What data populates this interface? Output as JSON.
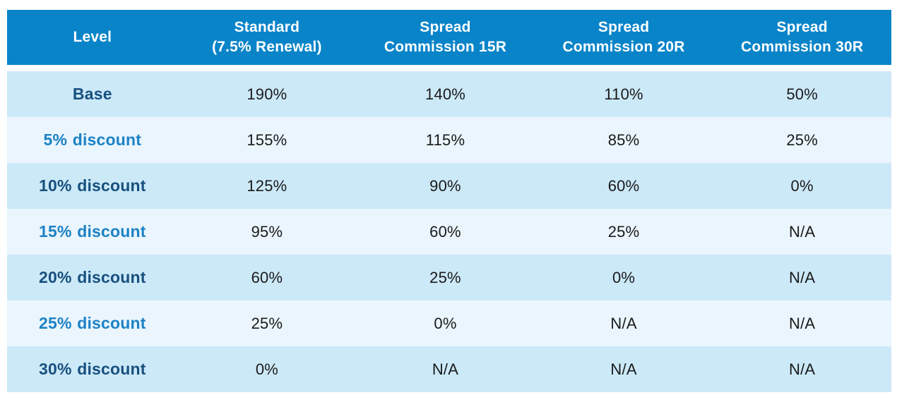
{
  "table": {
    "columns": [
      {
        "line1": "Level",
        "line2": ""
      },
      {
        "line1": "Standard",
        "line2": "(7.5% Renewal)"
      },
      {
        "line1": "Spread",
        "line2": "Commission 15R"
      },
      {
        "line1": "Spread",
        "line2": "Commission 20R"
      },
      {
        "line1": "Spread",
        "line2": "Commission 30R"
      }
    ],
    "rows": [
      {
        "label_strong": "Base",
        "label_rest": "",
        "label_style": "navy",
        "values": [
          "190%",
          "140%",
          "110%",
          "50%"
        ]
      },
      {
        "label_strong": "5%",
        "label_rest": "discount",
        "label_style": "blue",
        "values": [
          "155%",
          "115%",
          "85%",
          "25%"
        ]
      },
      {
        "label_strong": "10%",
        "label_rest": "discount",
        "label_style": "navy",
        "values": [
          "125%",
          "90%",
          "60%",
          "0%"
        ]
      },
      {
        "label_strong": "15%",
        "label_rest": "discount",
        "label_style": "blue",
        "values": [
          "95%",
          "60%",
          "25%",
          "N/A"
        ]
      },
      {
        "label_strong": "20%",
        "label_rest": "discount",
        "label_style": "navy",
        "values": [
          "60%",
          "25%",
          "0%",
          "N/A"
        ]
      },
      {
        "label_strong": "25%",
        "label_rest": "discount",
        "label_style": "blue",
        "values": [
          "25%",
          "0%",
          "N/A",
          "N/A"
        ]
      },
      {
        "label_strong": "30%",
        "label_rest": "discount",
        "label_style": "navy",
        "values": [
          "0%",
          "N/A",
          "N/A",
          "N/A"
        ]
      }
    ],
    "colors": {
      "header_bg": "#0984c9",
      "row_light_bg": "#cce9f8",
      "row_pale_bg": "#eaf5fd",
      "label_navy": "#17507e",
      "label_blue": "#1c82c5",
      "value_text": "#1a1a1a"
    }
  }
}
